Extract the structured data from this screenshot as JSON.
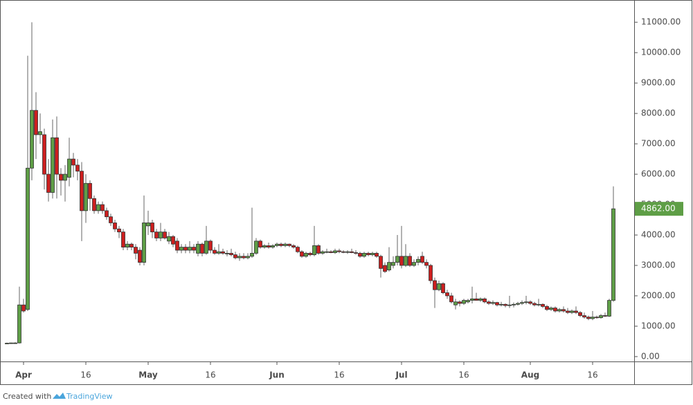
{
  "chart_data": {
    "type": "candlestick",
    "x": [
      "Mar 28",
      "Mar 29",
      "Mar 30",
      "Mar 31",
      "Apr 1",
      "Apr 2",
      "Apr 3",
      "Apr 4",
      "Apr 5",
      "Apr 6",
      "Apr 7",
      "Apr 8",
      "Apr 9",
      "Apr 10",
      "Apr 11",
      "Apr 12",
      "Apr 13",
      "Apr 14",
      "Apr 15",
      "Apr 16",
      "Apr 17",
      "Apr 18",
      "Apr 19",
      "Apr 20",
      "Apr 21",
      "Apr 22",
      "Apr 23",
      "Apr 24",
      "Apr 25",
      "Apr 26",
      "Apr 27",
      "Apr 28",
      "Apr 29",
      "Apr 30",
      "May 1",
      "May 2",
      "May 3",
      "May 4",
      "May 5",
      "May 6",
      "May 7",
      "May 8",
      "May 9",
      "May 10",
      "May 11",
      "May 12",
      "May 13",
      "May 14",
      "May 15",
      "May 16",
      "May 17",
      "May 18",
      "May 19",
      "May 20",
      "May 21",
      "May 22",
      "May 23",
      "May 24",
      "May 25",
      "May 26",
      "May 27",
      "May 28",
      "May 29",
      "May 30",
      "May 31",
      "Jun 1",
      "Jun 2",
      "Jun 3",
      "Jun 4",
      "Jun 5",
      "Jun 6",
      "Jun 7",
      "Jun 8",
      "Jun 9",
      "Jun 10",
      "Jun 11",
      "Jun 12",
      "Jun 13",
      "Jun 14",
      "Jun 15",
      "Jun 16",
      "Jun 17",
      "Jun 18",
      "Jun 19",
      "Jun 20",
      "Jun 21",
      "Jun 22",
      "Jun 23",
      "Jun 24",
      "Jun 25",
      "Jun 26",
      "Jun 27",
      "Jun 28",
      "Jun 29",
      "Jun 30",
      "Jul 1",
      "Jul 2",
      "Jul 3",
      "Jul 4",
      "Jul 5",
      "Jul 6",
      "Jul 7",
      "Jul 8",
      "Jul 9",
      "Jul 10",
      "Jul 11",
      "Jul 12",
      "Jul 13",
      "Jul 14",
      "Jul 15",
      "Jul 16",
      "Jul 17",
      "Jul 18",
      "Jul 19",
      "Jul 20",
      "Jul 21",
      "Jul 22",
      "Jul 23",
      "Jul 24",
      "Jul 25",
      "Jul 26",
      "Jul 27",
      "Jul 28",
      "Jul 29",
      "Jul 30",
      "Jul 31",
      "Aug 1",
      "Aug 2",
      "Aug 3",
      "Aug 4",
      "Aug 5",
      "Aug 6",
      "Aug 7",
      "Aug 8",
      "Aug 9",
      "Aug 10",
      "Aug 11",
      "Aug 12",
      "Aug 13",
      "Aug 14",
      "Aug 15",
      "Aug 16",
      "Aug 17",
      "Aug 18",
      "Aug 19",
      "Aug 20",
      "Aug 21"
    ],
    "candles": [
      [
        430,
        460,
        420,
        440
      ],
      [
        440,
        460,
        430,
        450
      ],
      [
        450,
        470,
        440,
        450
      ],
      [
        450,
        2300,
        430,
        1700
      ],
      [
        1700,
        1900,
        1450,
        1500
      ],
      [
        1550,
        9900,
        1500,
        6200
      ],
      [
        6200,
        11000,
        5800,
        8100
      ],
      [
        8100,
        8700,
        6500,
        7300
      ],
      [
        7300,
        8000,
        7000,
        7400
      ],
      [
        7300,
        7500,
        5500,
        6000
      ],
      [
        6000,
        6500,
        5100,
        5400
      ],
      [
        5400,
        7800,
        5200,
        7200
      ],
      [
        7200,
        7900,
        5200,
        6000
      ],
      [
        6000,
        6200,
        5300,
        5800
      ],
      [
        5800,
        6300,
        5100,
        6000
      ],
      [
        5900,
        7200,
        5600,
        6500
      ],
      [
        6500,
        6700,
        5900,
        6300
      ],
      [
        6300,
        6500,
        5800,
        6100
      ],
      [
        6100,
        6400,
        3800,
        4800
      ],
      [
        4800,
        6000,
        4400,
        5700
      ],
      [
        5700,
        5800,
        4800,
        5200
      ],
      [
        5200,
        5300,
        4700,
        4800
      ],
      [
        4800,
        5100,
        4700,
        5000
      ],
      [
        5000,
        5100,
        4700,
        4800
      ],
      [
        4800,
        4900,
        4500,
        4600
      ],
      [
        4600,
        4700,
        4300,
        4400
      ],
      [
        4400,
        4500,
        4100,
        4200
      ],
      [
        4200,
        4300,
        3900,
        4100
      ],
      [
        4100,
        4200,
        3500,
        3600
      ],
      [
        3600,
        3800,
        3500,
        3700
      ],
      [
        3700,
        3750,
        3500,
        3600
      ],
      [
        3600,
        3700,
        3200,
        3400
      ],
      [
        3500,
        3600,
        3000,
        3100
      ],
      [
        3100,
        5300,
        3000,
        4400
      ],
      [
        4300,
        4800,
        4000,
        4400
      ],
      [
        4400,
        4500,
        3900,
        4100
      ],
      [
        4100,
        4200,
        3800,
        3900
      ],
      [
        3900,
        4400,
        3800,
        4100
      ],
      [
        4100,
        4200,
        3850,
        3900
      ],
      [
        3800,
        4100,
        3700,
        3950
      ],
      [
        3950,
        4000,
        3600,
        3700
      ],
      [
        3800,
        3900,
        3400,
        3500
      ],
      [
        3500,
        3700,
        3400,
        3600
      ],
      [
        3600,
        3700,
        3400,
        3500
      ],
      [
        3500,
        3800,
        3400,
        3600
      ],
      [
        3600,
        3700,
        3400,
        3500
      ],
      [
        3400,
        3800,
        3300,
        3700
      ],
      [
        3700,
        3750,
        3300,
        3400
      ],
      [
        3400,
        4300,
        3350,
        3800
      ],
      [
        3800,
        3850,
        3400,
        3500
      ],
      [
        3500,
        3600,
        3350,
        3400
      ],
      [
        3400,
        3700,
        3350,
        3450
      ],
      [
        3450,
        3550,
        3350,
        3400
      ],
      [
        3400,
        3500,
        3300,
        3400
      ],
      [
        3400,
        3550,
        3300,
        3350
      ],
      [
        3350,
        3450,
        3200,
        3250
      ],
      [
        3250,
        3400,
        3150,
        3300
      ],
      [
        3300,
        3400,
        3200,
        3250
      ],
      [
        3250,
        3400,
        3200,
        3300
      ],
      [
        3300,
        4900,
        3250,
        3400
      ],
      [
        3400,
        3900,
        3350,
        3800
      ],
      [
        3800,
        3850,
        3550,
        3600
      ],
      [
        3600,
        3700,
        3550,
        3650
      ],
      [
        3650,
        3750,
        3550,
        3600
      ],
      [
        3600,
        3700,
        3550,
        3650
      ],
      [
        3650,
        3750,
        3600,
        3700
      ],
      [
        3700,
        3750,
        3600,
        3650
      ],
      [
        3650,
        3750,
        3600,
        3700
      ],
      [
        3700,
        3720,
        3600,
        3650
      ],
      [
        3650,
        3700,
        3550,
        3600
      ],
      [
        3600,
        3650,
        3400,
        3450
      ],
      [
        3450,
        3500,
        3250,
        3300
      ],
      [
        3300,
        3450,
        3250,
        3400
      ],
      [
        3400,
        3450,
        3300,
        3350
      ],
      [
        3350,
        4300,
        3300,
        3650
      ],
      [
        3650,
        3700,
        3350,
        3400
      ],
      [
        3400,
        3500,
        3350,
        3450
      ],
      [
        3450,
        3550,
        3400,
        3450
      ],
      [
        3450,
        3500,
        3400,
        3420
      ],
      [
        3420,
        3550,
        3380,
        3480
      ],
      [
        3480,
        3550,
        3400,
        3450
      ],
      [
        3450,
        3500,
        3400,
        3430
      ],
      [
        3430,
        3500,
        3380,
        3450
      ],
      [
        3450,
        3550,
        3400,
        3420
      ],
      [
        3420,
        3500,
        3350,
        3400
      ],
      [
        3400,
        3450,
        3250,
        3300
      ],
      [
        3300,
        3450,
        3250,
        3400
      ],
      [
        3400,
        3450,
        3300,
        3350
      ],
      [
        3350,
        3450,
        3300,
        3400
      ],
      [
        3400,
        3450,
        3250,
        3300
      ],
      [
        3300,
        3350,
        2600,
        2900
      ],
      [
        3000,
        3100,
        2750,
        2800
      ],
      [
        2850,
        3600,
        2800,
        3100
      ],
      [
        3000,
        3300,
        2900,
        3100
      ],
      [
        3100,
        4000,
        3000,
        3300
      ],
      [
        3300,
        4300,
        2900,
        3000
      ],
      [
        3000,
        3700,
        2950,
        3300
      ],
      [
        3300,
        3400,
        2950,
        3000
      ],
      [
        3000,
        3200,
        2950,
        3100
      ],
      [
        3100,
        3300,
        3000,
        3200
      ],
      [
        3300,
        3450,
        3050,
        3100
      ],
      [
        3100,
        3200,
        2900,
        3000
      ],
      [
        3000,
        3050,
        2400,
        2500
      ],
      [
        2500,
        2600,
        1600,
        2200
      ],
      [
        2200,
        2500,
        2150,
        2400
      ],
      [
        2400,
        2450,
        2050,
        2100
      ],
      [
        2100,
        2200,
        1900,
        2000
      ],
      [
        2000,
        2100,
        1750,
        1800
      ],
      [
        1700,
        1900,
        1550,
        1800
      ],
      [
        1800,
        1850,
        1650,
        1750
      ],
      [
        1750,
        1900,
        1700,
        1850
      ],
      [
        1800,
        1900,
        1750,
        1850
      ],
      [
        1850,
        2300,
        1750,
        1900
      ],
      [
        1900,
        2100,
        1850,
        1850
      ],
      [
        1850,
        1950,
        1800,
        1900
      ],
      [
        1900,
        1950,
        1750,
        1800
      ],
      [
        1800,
        1850,
        1700,
        1750
      ],
      [
        1750,
        1850,
        1700,
        1780
      ],
      [
        1780,
        1800,
        1650,
        1700
      ],
      [
        1700,
        1800,
        1650,
        1720
      ],
      [
        1720,
        1750,
        1620,
        1680
      ],
      [
        1680,
        2000,
        1600,
        1700
      ],
      [
        1700,
        1780,
        1620,
        1720
      ],
      [
        1720,
        1800,
        1680,
        1750
      ],
      [
        1750,
        1850,
        1700,
        1780
      ],
      [
        1780,
        2000,
        1720,
        1800
      ],
      [
        1800,
        1850,
        1700,
        1750
      ],
      [
        1750,
        1800,
        1650,
        1700
      ],
      [
        1700,
        1900,
        1650,
        1720
      ],
      [
        1720,
        1750,
        1600,
        1650
      ],
      [
        1650,
        1700,
        1500,
        1550
      ],
      [
        1550,
        1650,
        1500,
        1600
      ],
      [
        1600,
        1650,
        1450,
        1500
      ],
      [
        1500,
        1600,
        1450,
        1550
      ],
      [
        1550,
        1650,
        1450,
        1500
      ],
      [
        1500,
        1600,
        1400,
        1450
      ],
      [
        1450,
        1550,
        1400,
        1500
      ],
      [
        1500,
        1650,
        1400,
        1450
      ],
      [
        1450,
        1500,
        1300,
        1350
      ],
      [
        1350,
        1450,
        1250,
        1300
      ],
      [
        1300,
        1350,
        1200,
        1250
      ],
      [
        1250,
        1500,
        1200,
        1300
      ],
      [
        1300,
        1350,
        1250,
        1280
      ],
      [
        1280,
        1400,
        1250,
        1350
      ],
      [
        1350,
        1450,
        1300,
        1330
      ],
      [
        1330,
        1900,
        1300,
        1850
      ],
      [
        1850,
        5600,
        1800,
        4862
      ]
    ],
    "up_color": "#5e9e46",
    "down_color": "#cc1f1f",
    "ylim": [
      -160,
      11550
    ],
    "yticks": [
      {
        "value": 0,
        "label": "0.00"
      },
      {
        "value": 1000,
        "label": "1000.00"
      },
      {
        "value": 2000,
        "label": "2000.00"
      },
      {
        "value": 3000,
        "label": "3000.00"
      },
      {
        "value": 4000,
        "label": "4000.00"
      },
      {
        "value": 5000,
        "label": "5000.00"
      },
      {
        "value": 6000,
        "label": "6000.00"
      },
      {
        "value": 7000,
        "label": "7000.00"
      },
      {
        "value": 8000,
        "label": "8000.00"
      },
      {
        "value": 9000,
        "label": "9000.00"
      },
      {
        "value": 10000,
        "label": "10000.00"
      },
      {
        "value": 11000,
        "label": "11000.00"
      }
    ],
    "xticks": [
      {
        "value": "Apr 1",
        "label": "Apr"
      },
      {
        "value": "Apr 16",
        "label": "16"
      },
      {
        "value": "May 1",
        "label": "May"
      },
      {
        "value": "May 16",
        "label": "16"
      },
      {
        "value": "Jun 1",
        "label": "Jun"
      },
      {
        "value": "Jun 16",
        "label": "16"
      },
      {
        "value": "Jul 1",
        "label": "Jul"
      },
      {
        "value": "Jul 16",
        "label": "16"
      },
      {
        "value": "Aug 1",
        "label": "Aug"
      },
      {
        "value": "Aug 16",
        "label": "16"
      }
    ],
    "last_price_label": "4862.00",
    "footer_prefix": "Created with",
    "footer_brand": "TradingView"
  }
}
